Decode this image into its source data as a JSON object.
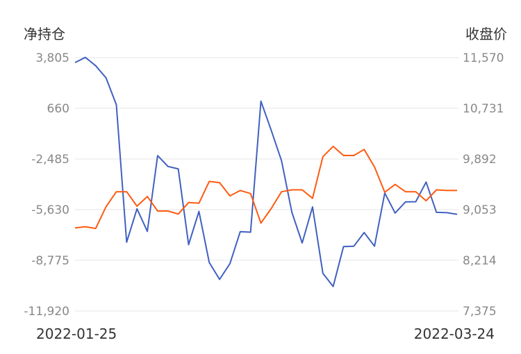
{
  "chart_data": {
    "type": "line",
    "left_axis_title": "净持仓",
    "right_axis_title": "收盘价",
    "x_start_label": "2022-01-25",
    "x_end_label": "2022-03-24",
    "left_ticks": [
      "3,805",
      "660",
      "-2,485",
      "-5,630",
      "-8,775",
      "-11,920"
    ],
    "right_ticks": [
      "11,570",
      "10,731",
      "9,892",
      "9,053",
      "8,214",
      "7,375"
    ],
    "ylim_left": [
      -11920,
      3805
    ],
    "ylim_right": [
      7375,
      11570
    ],
    "grid": true,
    "series": [
      {
        "axis": "left",
        "color": "#4060c0",
        "values": [
          3500,
          3820,
          3300,
          2550,
          880,
          -7650,
          -5580,
          -6980,
          -2280,
          -2950,
          -3100,
          -7800,
          -5740,
          -8910,
          -9960,
          -8980,
          -7000,
          -7030,
          1100,
          -700,
          -2600,
          -5800,
          -7700,
          -5460,
          -9580,
          -10400,
          -7920,
          -7900,
          -7050,
          -7900,
          -4600,
          -5840,
          -5150,
          -5140,
          -3920,
          -5800,
          -5820,
          -5920
        ]
      },
      {
        "axis": "right",
        "color": "#ff5a10",
        "values": [
          8750,
          8770,
          8740,
          9100,
          9350,
          9350,
          9110,
          9270,
          9030,
          9030,
          8980,
          9170,
          9160,
          9520,
          9500,
          9280,
          9370,
          9320,
          8830,
          9070,
          9350,
          9380,
          9380,
          9240,
          9930,
          10100,
          9950,
          9950,
          10050,
          9760,
          9340,
          9470,
          9350,
          9350,
          9200,
          9380,
          9370,
          9370
        ]
      }
    ]
  }
}
